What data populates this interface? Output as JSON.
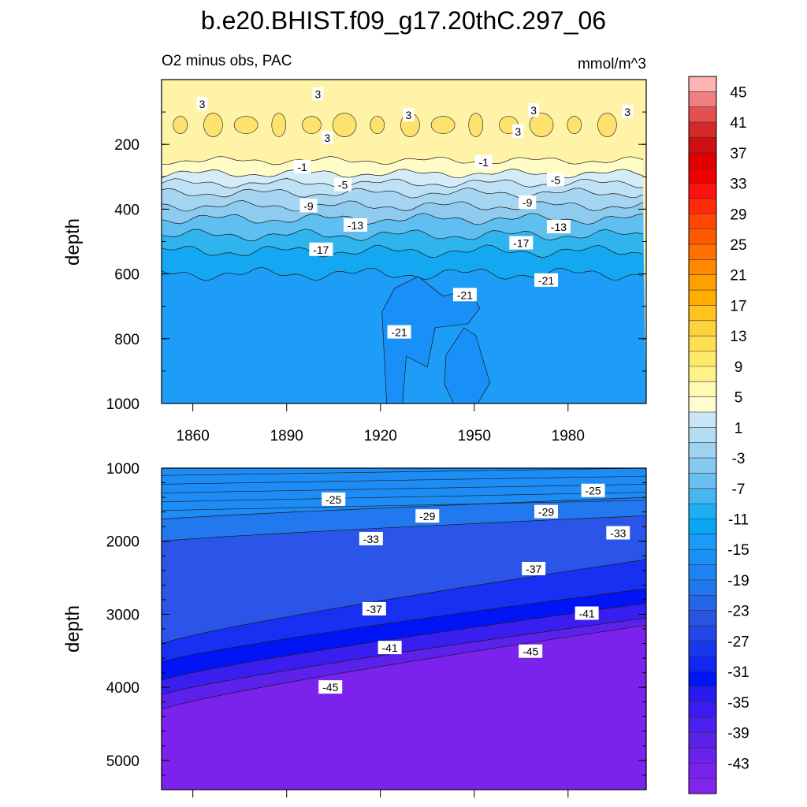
{
  "figure": {
    "title": "b.e20.BHIST.f09_g17.20thC.297_06",
    "subtitle_left": "O2 minus obs, PAC",
    "subtitle_right": "mmol/m^3"
  },
  "colors": {
    "frame": "#000000",
    "contour_line": "#1a1a1a"
  },
  "chart_data": [
    {
      "type": "heatmap",
      "name": "upper-panel",
      "title": "O2 minus obs, PAC",
      "units": "mmol/m^3",
      "xlabel": "",
      "ylabel": "depth",
      "xlim": [
        1850,
        2005
      ],
      "ylim": [
        1000,
        0
      ],
      "xticks": [
        1860,
        1890,
        1920,
        1950,
        1980
      ],
      "yticks": [
        200,
        400,
        600,
        800,
        1000
      ],
      "contour_interval": 2,
      "bands": [
        {
          "value": 3,
          "depth_bottom": 250,
          "color": "#fff3a8"
        },
        {
          "value": 1,
          "depth_bottom": 290,
          "color": "#fffcc8"
        },
        {
          "value": -1,
          "depth_bottom": 320,
          "color": "#d4ebf8"
        },
        {
          "value": -3,
          "depth_bottom": 350,
          "color": "#bfe1f5"
        },
        {
          "value": -5,
          "depth_bottom": 390,
          "color": "#a6d5f1"
        },
        {
          "value": -9,
          "depth_bottom": 430,
          "color": "#8ecbef"
        },
        {
          "value": -13,
          "depth_bottom": 480,
          "color": "#5fbff0"
        },
        {
          "value": -15,
          "depth_bottom": 530,
          "color": "#2fb4ee"
        },
        {
          "value": -17,
          "depth_bottom": 600,
          "color": "#14a8f2"
        },
        {
          "value": -19,
          "depth_bottom": 1000,
          "color": "#1e9df8"
        }
      ],
      "core_band": {
        "value": 5,
        "depth_top": 110,
        "depth_bottom": 170,
        "color": "#fde26e"
      },
      "patches": [
        {
          "value": -21,
          "x": [
            1922,
            1935,
            1948,
            1955
          ],
          "depth": [
            620,
            1000
          ],
          "color": "#1890f7"
        }
      ],
      "contour_labels": [
        {
          "text": "3",
          "x": 1863,
          "depth": 75
        },
        {
          "text": "3",
          "x": 1900,
          "depth": 45
        },
        {
          "text": "3",
          "x": 1929,
          "depth": 110
        },
        {
          "text": "3",
          "x": 1969,
          "depth": 95
        },
        {
          "text": "3",
          "x": 1999,
          "depth": 100
        },
        {
          "text": "3",
          "x": 1903,
          "depth": 180
        },
        {
          "text": "3",
          "x": 1964,
          "depth": 160
        },
        {
          "text": "-1",
          "x": 1895,
          "depth": 270
        },
        {
          "text": "-1",
          "x": 1953,
          "depth": 255
        },
        {
          "text": "-5",
          "x": 1908,
          "depth": 325
        },
        {
          "text": "-5",
          "x": 1976,
          "depth": 310
        },
        {
          "text": "-9",
          "x": 1897,
          "depth": 390
        },
        {
          "text": "-9",
          "x": 1967,
          "depth": 380
        },
        {
          "text": "-13",
          "x": 1912,
          "depth": 450
        },
        {
          "text": "-13",
          "x": 1977,
          "depth": 455
        },
        {
          "text": "-17",
          "x": 1901,
          "depth": 525
        },
        {
          "text": "-17",
          "x": 1965,
          "depth": 505
        },
        {
          "text": "-21",
          "x": 1947,
          "depth": 665
        },
        {
          "text": "-21",
          "x": 1973,
          "depth": 620
        },
        {
          "text": "-21",
          "x": 1926,
          "depth": 780
        }
      ]
    },
    {
      "type": "heatmap",
      "name": "lower-panel",
      "xlabel": "",
      "ylabel": "depth",
      "xlim": [
        1850,
        2005
      ],
      "ylim": [
        5400,
        1000
      ],
      "yticks": [
        1000,
        2000,
        3000,
        4000,
        5000
      ],
      "contour_interval": 2,
      "bands": [
        {
          "value": -25,
          "d_left": 1700,
          "d_right": 1400,
          "color": "#1e8cf5"
        },
        {
          "value": -29,
          "d_left": 2000,
          "d_right": 1650,
          "color": "#2278ef"
        },
        {
          "value": -33,
          "d_left": 3400,
          "d_right": 2250,
          "color": "#2a55e8"
        },
        {
          "value": -37,
          "d_left": 3650,
          "d_right": 2650,
          "color": "#1830f2"
        },
        {
          "value": -39,
          "d_left": 3900,
          "d_right": 2850,
          "color": "#0014f5"
        },
        {
          "value": -41,
          "d_left": 4100,
          "d_right": 3050,
          "color": "#3a1ef0"
        },
        {
          "value": -43,
          "d_left": 4300,
          "d_right": 3150,
          "color": "#5c22ec"
        },
        {
          "value": -45,
          "d_left": 5400,
          "d_right": 5400,
          "color": "#7b22ec"
        }
      ],
      "contour_labels": [
        {
          "text": "-25",
          "x": 1905,
          "depth": 1430
        },
        {
          "text": "-25",
          "x": 1988,
          "depth": 1310
        },
        {
          "text": "-29",
          "x": 1935,
          "depth": 1660
        },
        {
          "text": "-29",
          "x": 1973,
          "depth": 1600
        },
        {
          "text": "-33",
          "x": 1917,
          "depth": 1970
        },
        {
          "text": "-33",
          "x": 1996,
          "depth": 1890
        },
        {
          "text": "-37",
          "x": 1918,
          "depth": 2930
        },
        {
          "text": "-37",
          "x": 1969,
          "depth": 2380
        },
        {
          "text": "-41",
          "x": 1923,
          "depth": 3460
        },
        {
          "text": "-41",
          "x": 1986,
          "depth": 2990
        },
        {
          "text": "-45",
          "x": 1904,
          "depth": 4000
        },
        {
          "text": "-45",
          "x": 1968,
          "depth": 3510
        }
      ]
    },
    {
      "type": "colorbar",
      "name": "colorbar",
      "labels": [
        "45",
        "41",
        "37",
        "33",
        "29",
        "25",
        "21",
        "17",
        "13",
        "9",
        "5",
        "1",
        "-3",
        "-7",
        "-11",
        "-15",
        "-19",
        "-23",
        "-27",
        "-31",
        "-35",
        "-39",
        "-43"
      ],
      "colors": [
        "#ffb4b4",
        "#f08080",
        "#e25050",
        "#d62828",
        "#d01010",
        "#e00000",
        "#f20000",
        "#ff1010",
        "#ff2a0a",
        "#ff4605",
        "#ff5a00",
        "#ff7000",
        "#ff8800",
        "#ffa000",
        "#ffad00",
        "#ffc21e",
        "#ffd23c",
        "#ffdf50",
        "#ffe96a",
        "#fff288",
        "#fff9b4",
        "#fffdd0",
        "#c8e6f6",
        "#b4dcf2",
        "#9ed2f0",
        "#87c8ee",
        "#6ac0f0",
        "#48b6f0",
        "#1eaff2",
        "#0aa6f6",
        "#1b9bf8",
        "#1890f6",
        "#1e83f2",
        "#2076ed",
        "#2566e6",
        "#2a54e2",
        "#2246e8",
        "#1838ee",
        "#1028f4",
        "#0016f6",
        "#2a1af2",
        "#3a1cf0",
        "#4c20ee",
        "#5c22ec",
        "#6a22ec",
        "#7822ec",
        "#8224ec"
      ]
    }
  ]
}
